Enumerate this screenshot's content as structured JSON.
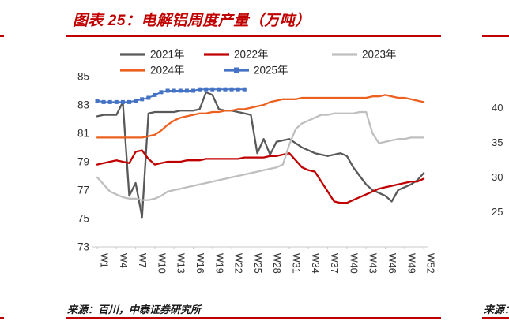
{
  "page": {
    "title": "图表 25：电解铝周度产量（万吨）",
    "source": "来源：百川，中泰证券研究所",
    "accent_color": "#C00000"
  },
  "right_panel": {
    "axis_labels": [
      "40",
      "35",
      "30",
      "25"
    ],
    "source_fragment": "来源：百川"
  },
  "chart_data": {
    "type": "line",
    "title": "电解铝周度产量（万吨）",
    "ylabel": "",
    "xlabel": "",
    "ylim": [
      73,
      85
    ],
    "yticks": [
      85,
      83,
      81,
      79,
      77,
      75,
      73
    ],
    "x_count": 52,
    "x_tick_labels": [
      "W1",
      "W4",
      "W7",
      "W10",
      "W13",
      "W16",
      "W19",
      "W22",
      "W25",
      "W28",
      "W31",
      "W34",
      "W37",
      "W40",
      "W43",
      "W46",
      "W49",
      "W52"
    ],
    "grid": false,
    "legend_position": "top",
    "series": [
      {
        "name": "2021年",
        "color": "#595959",
        "marker": "none",
        "values": [
          82.2,
          82.3,
          82.3,
          82.3,
          83.2,
          76.6,
          77.5,
          75.1,
          82.4,
          82.5,
          82.5,
          82.5,
          82.5,
          82.6,
          82.6,
          82.6,
          82.7,
          83.9,
          83.7,
          82.7,
          82.6,
          82.6,
          82.5,
          82.4,
          82.3,
          79.6,
          80.6,
          79.5,
          80.4,
          80.5,
          80.6,
          80.3,
          80.0,
          79.8,
          79.6,
          79.5,
          79.4,
          79.5,
          79.6,
          79.4,
          78.6,
          78.0,
          77.4,
          77.0,
          76.8,
          76.6,
          76.2,
          77.0,
          77.2,
          77.4,
          77.7,
          78.2
        ]
      },
      {
        "name": "2022年",
        "color": "#C00000",
        "marker": "none",
        "values": [
          78.8,
          78.9,
          79.0,
          79.1,
          79.0,
          78.9,
          79.7,
          79.8,
          79.2,
          78.8,
          78.9,
          79.0,
          79.0,
          79.0,
          79.1,
          79.1,
          79.1,
          79.2,
          79.2,
          79.2,
          79.2,
          79.2,
          79.2,
          79.3,
          79.3,
          79.3,
          79.3,
          79.4,
          79.4,
          79.5,
          79.6,
          79.1,
          78.6,
          78.4,
          78.3,
          77.6,
          76.9,
          76.2,
          76.1,
          76.1,
          76.3,
          76.5,
          76.7,
          76.9,
          77.1,
          77.2,
          77.3,
          77.4,
          77.5,
          77.6,
          77.6,
          77.8
        ]
      },
      {
        "name": "2023年",
        "color": "#BFBFBF",
        "marker": "none",
        "values": [
          77.9,
          77.4,
          76.9,
          76.7,
          76.5,
          76.4,
          76.4,
          76.3,
          76.3,
          76.4,
          76.6,
          76.9,
          77.0,
          77.1,
          77.2,
          77.3,
          77.4,
          77.5,
          77.6,
          77.7,
          77.8,
          77.9,
          78.0,
          78.1,
          78.2,
          78.3,
          78.4,
          78.5,
          78.6,
          78.8,
          80.2,
          81.3,
          81.7,
          81.9,
          82.1,
          82.3,
          82.3,
          82.4,
          82.4,
          82.4,
          82.4,
          82.5,
          82.5,
          81.0,
          80.3,
          80.4,
          80.5,
          80.6,
          80.6,
          80.7,
          80.7,
          80.7
        ]
      },
      {
        "name": "2024年",
        "color": "#EC6120",
        "marker": "none",
        "values": [
          80.7,
          80.7,
          80.7,
          80.7,
          80.7,
          80.7,
          80.7,
          80.7,
          80.8,
          80.9,
          81.2,
          81.6,
          81.9,
          82.1,
          82.2,
          82.3,
          82.4,
          82.4,
          82.5,
          82.5,
          82.6,
          82.6,
          82.7,
          82.7,
          82.8,
          82.9,
          83.0,
          83.2,
          83.3,
          83.4,
          83.4,
          83.4,
          83.5,
          83.5,
          83.5,
          83.5,
          83.5,
          83.5,
          83.5,
          83.5,
          83.5,
          83.5,
          83.5,
          83.6,
          83.6,
          83.7,
          83.6,
          83.5,
          83.5,
          83.4,
          83.3,
          83.2
        ]
      },
      {
        "name": "2025年",
        "color": "#4472C4",
        "marker": "square",
        "values": [
          83.3,
          83.2,
          83.2,
          83.2,
          83.2,
          83.2,
          83.3,
          83.4,
          83.5,
          83.7,
          83.9,
          84.0,
          84.0,
          84.0,
          84.0,
          84.0,
          84.1,
          84.1,
          84.1,
          84.1,
          84.1,
          84.1,
          84.1,
          84.1
        ]
      }
    ]
  }
}
